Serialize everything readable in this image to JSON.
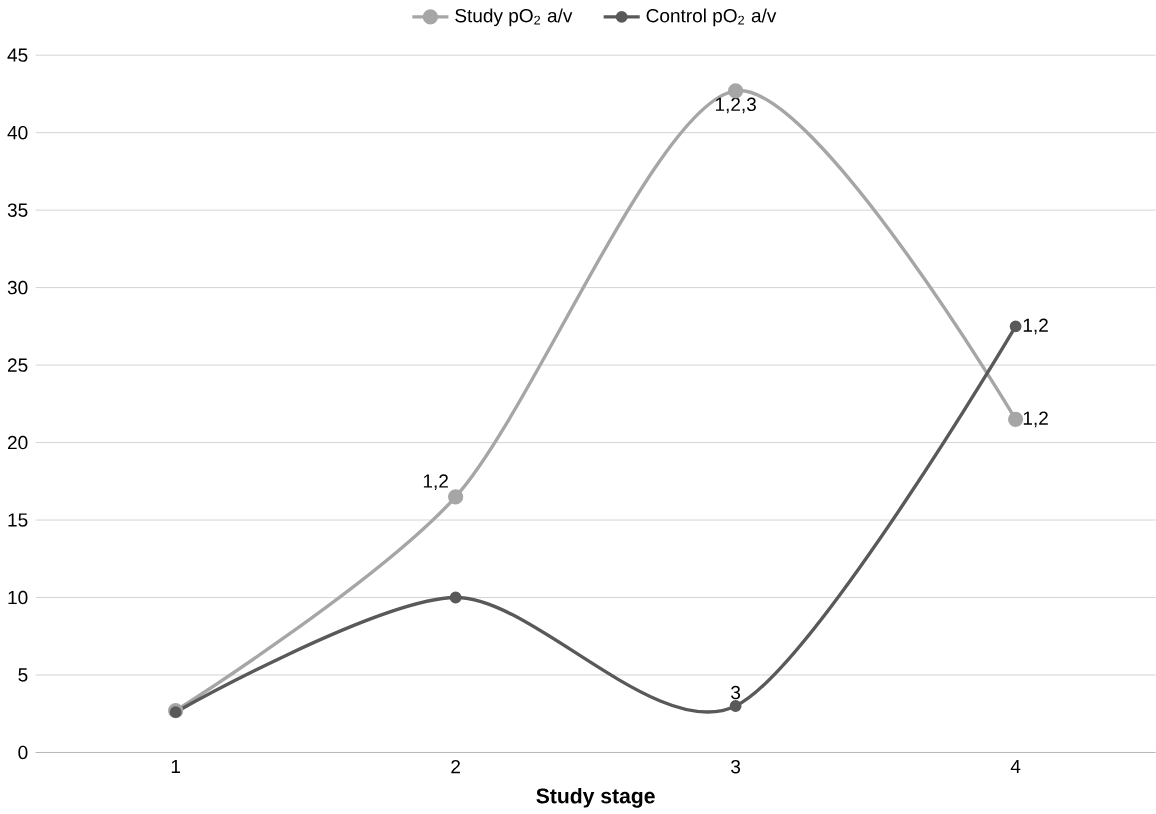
{
  "chart_data": {
    "type": "line",
    "xlabel": "Study stage",
    "categories": [
      "1",
      "2",
      "3",
      "4"
    ],
    "series": [
      {
        "name": "Study pO$_{2}$ a/v",
        "color": "#a6a6a6",
        "values": [
          2.7,
          16.5,
          42.7,
          21.5
        ]
      },
      {
        "name": "Control pO$_{2}$ a/v",
        "color": "#595959",
        "values": [
          2.6,
          10,
          3,
          27.5
        ]
      }
    ],
    "ylim": [
      0,
      45
    ],
    "yticks": [
      0,
      5,
      10,
      15,
      20,
      25,
      30,
      35,
      40,
      45
    ],
    "grid": "y",
    "legend": "top",
    "marker": "circle",
    "line_style": "solid",
    "annotations": [
      {
        "text": "1,2",
        "x": "2",
        "y": 16.5
      },
      {
        "text": "1,2,3",
        "x": "3",
        "y": 42.7
      },
      {
        "text": "1,2",
        "x": "4",
        "y": 21.5
      },
      {
        "text": "3",
        "x": "3",
        "y": 3
      },
      {
        "text": "1,2",
        "x": "4",
        "y": 27.5
      }
    ]
  }
}
